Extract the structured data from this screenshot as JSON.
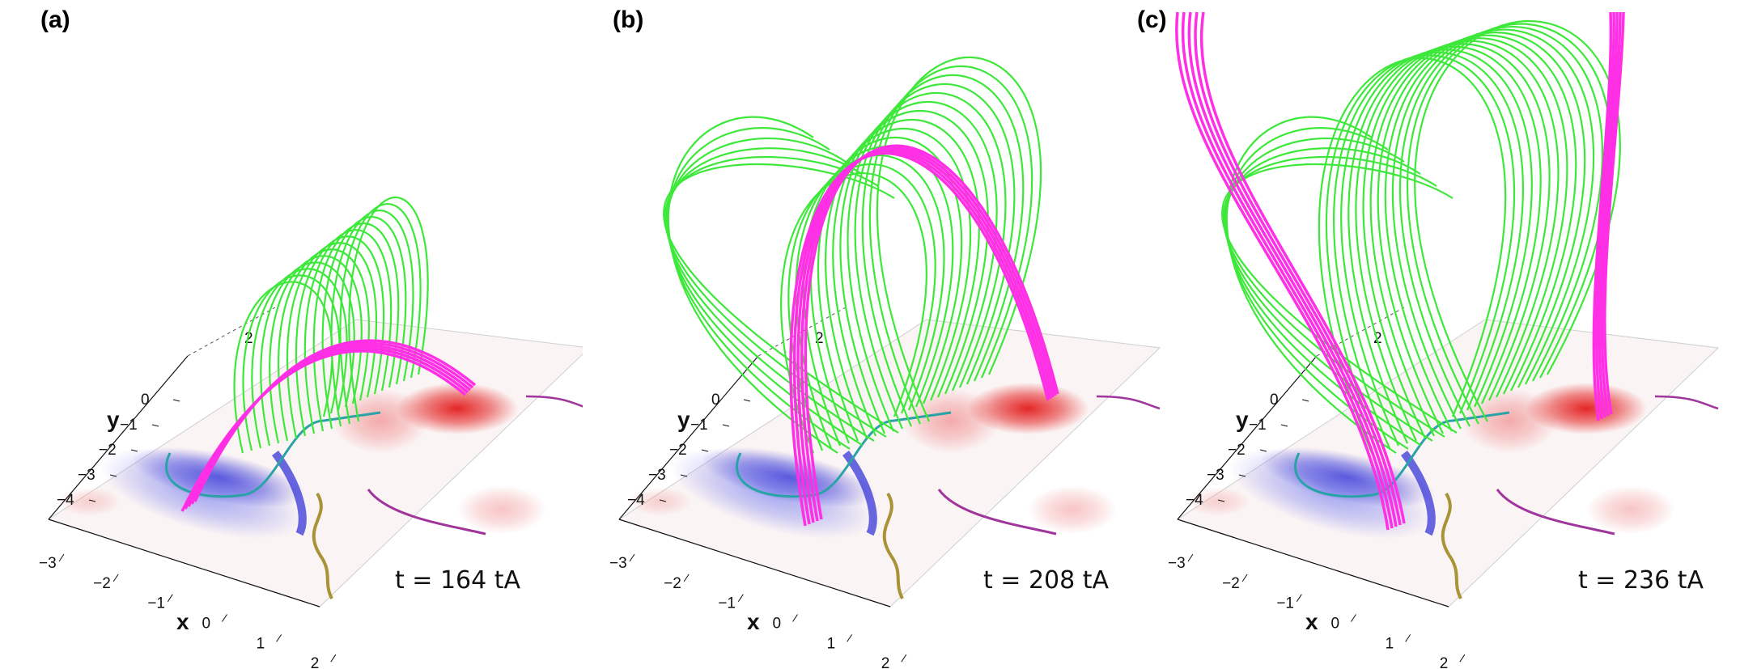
{
  "figure": {
    "panels": [
      {
        "label": "(a)",
        "time_text": "t = 164 tA",
        "x_ticks": [
          "−3",
          "−2",
          "−1",
          "0",
          "1",
          "2"
        ],
        "y_ticks": [
          "0",
          "−1",
          "−2",
          "−3",
          "−4"
        ],
        "z_tick": "2",
        "x_axis_label": "x",
        "y_axis_label": "y",
        "state": "compact"
      },
      {
        "label": "(b)",
        "time_text": "t = 208 tA",
        "x_ticks": [
          "−3",
          "−2",
          "−1",
          "0",
          "1",
          "2"
        ],
        "y_ticks": [
          "0",
          "−1",
          "−2",
          "−3",
          "−4"
        ],
        "z_tick": "2",
        "x_axis_label": "x",
        "y_axis_label": "y",
        "state": "rising"
      },
      {
        "label": "(c)",
        "time_text": "t = 236 tA",
        "x_ticks": [
          "−3",
          "−2",
          "−1",
          "0",
          "1",
          "2"
        ],
        "y_ticks": [
          "0",
          "−1",
          "−2",
          "−3",
          "−4"
        ],
        "z_tick": "2",
        "x_axis_label": "x",
        "y_axis_label": "y",
        "state": "erupted"
      }
    ],
    "colors": {
      "flux_rope": "#ff2fe6",
      "arcade": "#3de83a",
      "positive_polarity": "#e31b1b",
      "negative_polarity": "#2a2ad6",
      "pil_cyan": "#2aa3a6",
      "pil_olive": "#a89436",
      "pil_purple": "#a0369c"
    }
  }
}
